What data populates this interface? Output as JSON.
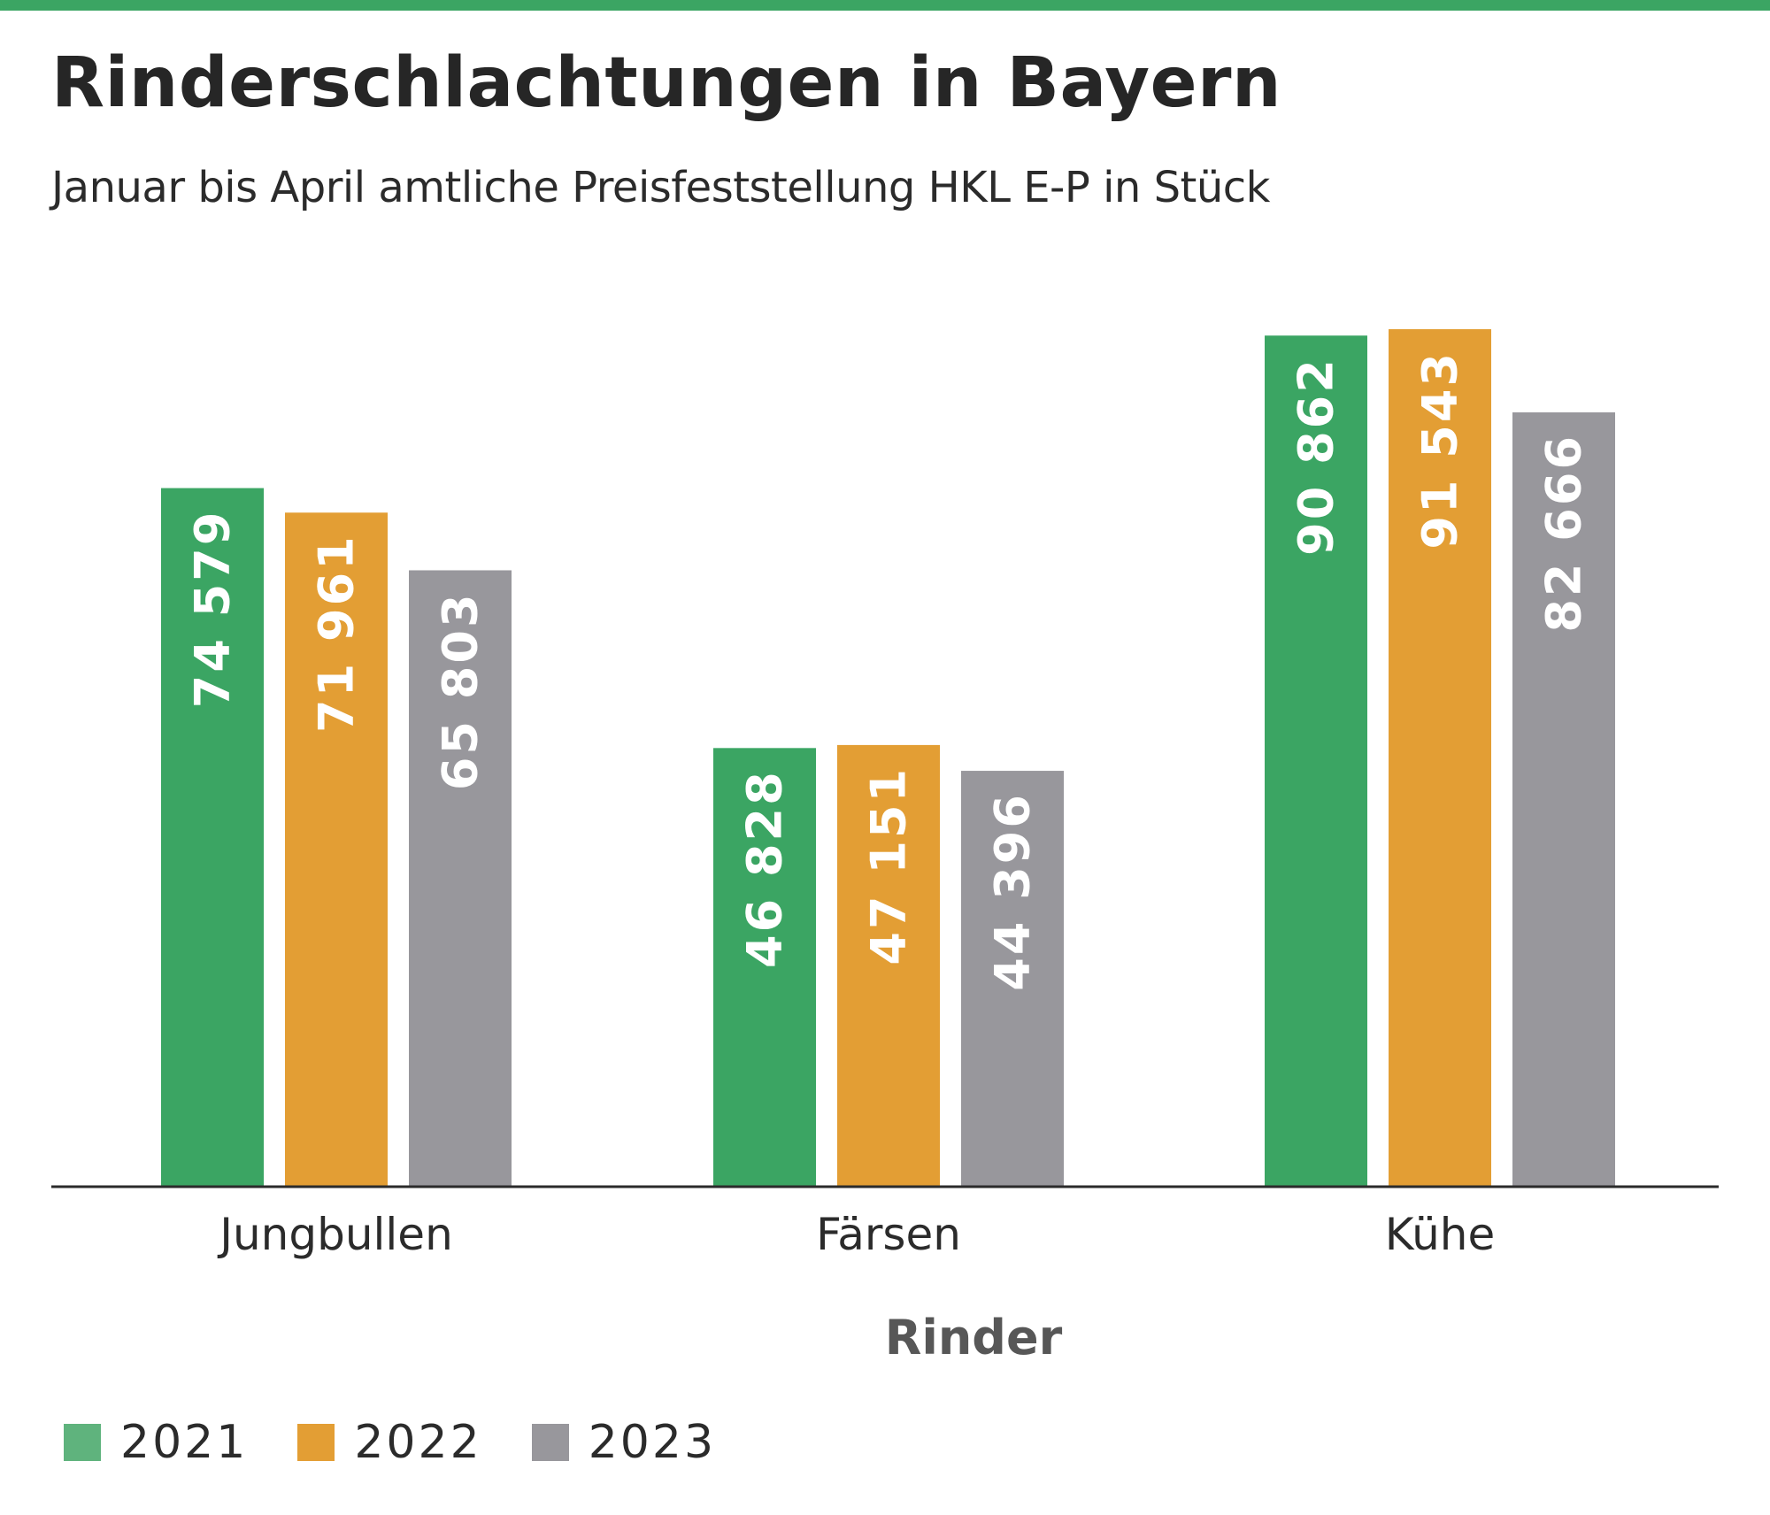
{
  "title": "Rinderschlachtungen in Bayern",
  "subtitle": "Januar bis April amtliche Preisfeststellung HKL E-P in Stück",
  "colors": {
    "top_rule": "#3ba563",
    "series": [
      "#3ba563",
      "#e39e34",
      "#98979c"
    ],
    "axis": "#2b2b2b",
    "bar_label": "#ffffff"
  },
  "legend": [
    {
      "label": "2021",
      "color": "#5fb37d"
    },
    {
      "label": "2022",
      "color": "#e39e34"
    },
    {
      "label": "2023",
      "color": "#98979c"
    }
  ],
  "chart_data": {
    "type": "bar",
    "title": "Rinderschlachtungen in Bayern",
    "subtitle": "Januar bis April amtliche Preisfeststellung HKL E-P in Stück",
    "xlabel": "Rinder",
    "ylabel": "",
    "categories": [
      "Jungbullen",
      "Färsen",
      "Kühe"
    ],
    "series": [
      {
        "name": "2021",
        "values": [
          74579,
          46828,
          90862
        ],
        "labels": [
          "74 579",
          "46 828",
          "90 862"
        ]
      },
      {
        "name": "2022",
        "values": [
          71961,
          47151,
          91543
        ],
        "labels": [
          "71 961",
          "47 151",
          "91 543"
        ]
      },
      {
        "name": "2023",
        "values": [
          65803,
          44396,
          82666
        ],
        "labels": [
          "65 803",
          "44 396",
          "82 666"
        ]
      }
    ],
    "ylim": [
      0,
      91543
    ],
    "grid": false,
    "legend_position": "bottom-left",
    "data_labels": "inside bars, rotated"
  }
}
